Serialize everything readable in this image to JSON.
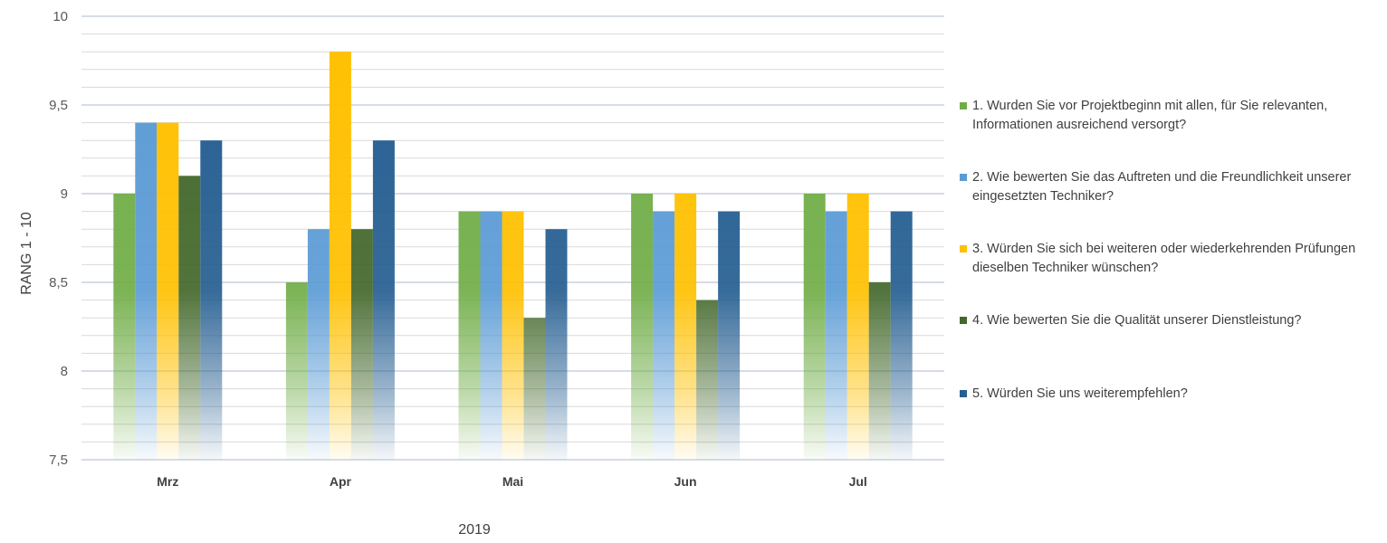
{
  "chart_data": {
    "type": "bar",
    "categories": [
      "Mrz",
      "Apr",
      "Mai",
      "Jun",
      "Jul"
    ],
    "xlabel": "2019",
    "ylabel": "RANG 1 - 10",
    "ylim": [
      7.5,
      10
    ],
    "yticks": [
      "7,5",
      "8",
      "8,5",
      "9",
      "9,5",
      "10"
    ],
    "ytick_values": [
      7.5,
      8,
      8.5,
      9,
      9.5,
      10
    ],
    "grid": true,
    "legend_position": "right",
    "series": [
      {
        "name": "1. Wurden Sie vor Projektbeginn mit allen, für Sie relevanten, Informationen ausreichend versorgt?",
        "color": "#70AD47",
        "values": [
          9.0,
          8.5,
          8.9,
          9.0,
          9.0
        ]
      },
      {
        "name": "2. Wie bewerten Sie das Auftreten und die Freundlichkeit unserer eingesetzten Techniker?",
        "color": "#5B9BD5",
        "values": [
          9.4,
          8.8,
          8.9,
          8.9,
          8.9
        ]
      },
      {
        "name": "3. Würden Sie sich bei weiteren oder wiederkehrenden Prüfungen dieselben Techniker wünschen?",
        "color": "#FFC000",
        "values": [
          9.4,
          9.8,
          8.9,
          9.0,
          9.0
        ]
      },
      {
        "name": "4. Wie bewerten Sie die Qualität unserer Dienstleistung?",
        "color": "#43682B",
        "values": [
          9.1,
          8.8,
          8.3,
          8.4,
          8.5
        ]
      },
      {
        "name": "5. Würden Sie uns weiterempfehlen?",
        "color": "#255E91",
        "values": [
          9.3,
          9.3,
          8.8,
          8.9,
          8.9
        ]
      }
    ]
  }
}
